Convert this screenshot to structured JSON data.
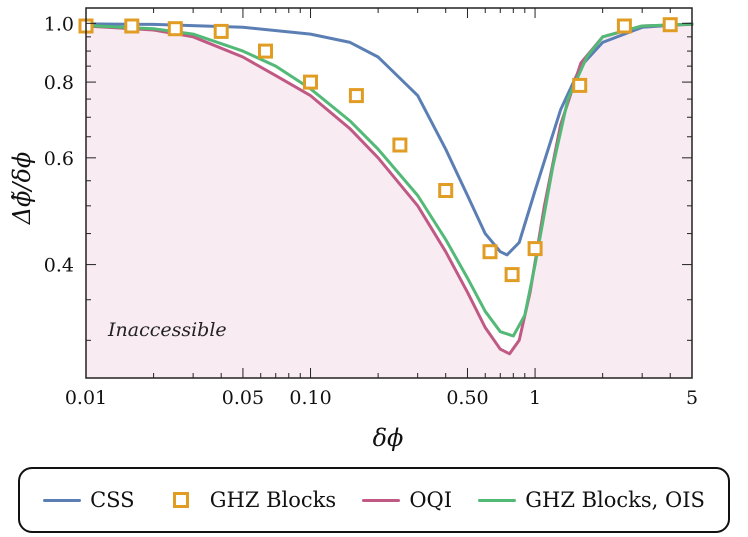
{
  "chart_data": {
    "type": "line",
    "xlabel": "δϕ",
    "ylabel": "Δϕ̃/δϕ",
    "xscale": "log",
    "yscale": "log",
    "xlim": [
      0.01,
      5
    ],
    "ylim": [
      0.26,
      1.06
    ],
    "x_ticks": [
      {
        "value": 0.01,
        "label": "0.01"
      },
      {
        "value": 0.05,
        "label": "0.05"
      },
      {
        "value": 0.1,
        "label": "0.10"
      },
      {
        "value": 0.5,
        "label": "0.50"
      },
      {
        "value": 1,
        "label": "1"
      },
      {
        "value": 5,
        "label": "5"
      }
    ],
    "y_ticks": [
      {
        "value": 0.4,
        "label": "0.4"
      },
      {
        "value": 0.6,
        "label": "0.6"
      },
      {
        "value": 0.8,
        "label": "0.8"
      },
      {
        "value": 1.0,
        "label": "1.0"
      }
    ],
    "annotation": "Inaccessible",
    "region_fill": "#f8ebf1",
    "series": [
      {
        "name": "CSS",
        "kind": "line",
        "color": "#5b7fb5",
        "points": [
          [
            0.01,
            0.998
          ],
          [
            0.02,
            0.996
          ],
          [
            0.05,
            0.985
          ],
          [
            0.1,
            0.96
          ],
          [
            0.15,
            0.93
          ],
          [
            0.2,
            0.88
          ],
          [
            0.3,
            0.76
          ],
          [
            0.4,
            0.62
          ],
          [
            0.5,
            0.52
          ],
          [
            0.6,
            0.45
          ],
          [
            0.7,
            0.42
          ],
          [
            0.75,
            0.415
          ],
          [
            0.85,
            0.435
          ],
          [
            1.0,
            0.53
          ],
          [
            1.3,
            0.72
          ],
          [
            1.6,
            0.85
          ],
          [
            2.0,
            0.93
          ],
          [
            3.0,
            0.985
          ],
          [
            5.0,
            0.998
          ]
        ]
      },
      {
        "name": "GHZ Blocks",
        "kind": "marker",
        "color": "#e19c24",
        "points": [
          [
            0.01,
            0.99
          ],
          [
            0.016,
            0.99
          ],
          [
            0.025,
            0.98
          ],
          [
            0.04,
            0.97
          ],
          [
            0.063,
            0.9
          ],
          [
            0.1,
            0.8
          ],
          [
            0.16,
            0.76
          ],
          [
            0.25,
            0.63
          ],
          [
            0.4,
            0.53
          ],
          [
            0.63,
            0.42
          ],
          [
            0.79,
            0.385
          ],
          [
            1.0,
            0.425
          ],
          [
            1.58,
            0.79
          ],
          [
            2.5,
            0.99
          ],
          [
            4.0,
            0.995
          ]
        ]
      },
      {
        "name": "OQI",
        "kind": "line",
        "color": "#c05a84",
        "points": [
          [
            0.01,
            0.99
          ],
          [
            0.02,
            0.975
          ],
          [
            0.03,
            0.95
          ],
          [
            0.05,
            0.88
          ],
          [
            0.07,
            0.82
          ],
          [
            0.1,
            0.76
          ],
          [
            0.15,
            0.67
          ],
          [
            0.2,
            0.6
          ],
          [
            0.3,
            0.5
          ],
          [
            0.4,
            0.42
          ],
          [
            0.5,
            0.36
          ],
          [
            0.6,
            0.315
          ],
          [
            0.7,
            0.29
          ],
          [
            0.77,
            0.285
          ],
          [
            0.85,
            0.3
          ],
          [
            0.95,
            0.36
          ],
          [
            1.1,
            0.5
          ],
          [
            1.3,
            0.68
          ],
          [
            1.6,
            0.86
          ],
          [
            2.0,
            0.95
          ],
          [
            3.0,
            0.99
          ],
          [
            5.0,
            0.996
          ]
        ]
      },
      {
        "name": "GHZ Blocks, OIS",
        "kind": "line",
        "color": "#52b977",
        "points": [
          [
            0.01,
            0.992
          ],
          [
            0.02,
            0.98
          ],
          [
            0.03,
            0.96
          ],
          [
            0.05,
            0.9
          ],
          [
            0.07,
            0.85
          ],
          [
            0.1,
            0.78
          ],
          [
            0.15,
            0.69
          ],
          [
            0.2,
            0.62
          ],
          [
            0.3,
            0.52
          ],
          [
            0.4,
            0.44
          ],
          [
            0.5,
            0.38
          ],
          [
            0.6,
            0.335
          ],
          [
            0.7,
            0.31
          ],
          [
            0.8,
            0.305
          ],
          [
            0.9,
            0.33
          ],
          [
            1.0,
            0.4
          ],
          [
            1.2,
            0.58
          ],
          [
            1.4,
            0.75
          ],
          [
            1.7,
            0.88
          ],
          [
            2.0,
            0.95
          ],
          [
            3.0,
            0.99
          ],
          [
            5.0,
            0.997
          ]
        ]
      }
    ]
  }
}
